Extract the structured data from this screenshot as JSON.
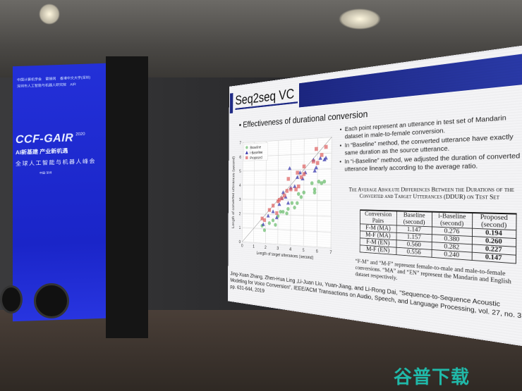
{
  "banner": {
    "logos": [
      "中国计算机学会",
      "雷锋网",
      "香港中文大学(深圳)",
      "深圳市人工智能与机器人研究院",
      "AIR"
    ],
    "title": "CCF-GAIR",
    "year": "2020",
    "slogan": "AI新基建 产业新机遇",
    "event": "全球人工智能与机器人峰会",
    "location": "中国·深圳"
  },
  "slide": {
    "title": "Seq2seq VC",
    "bullet": "Effectiveness of durational conversion",
    "notes": [
      "Each point represent an utterance in test set of Mandarin dataset in male-to-female conversion.",
      "In “Baseline” method, the converted utterance have exactly same duration as the source utterance.",
      "In “i-Baseline” method, we adjusted the duration of converted utterance linearly according to the average ratio."
    ],
    "table_caption": "The Average Absolute Differences Between the Durations of the Converted and Target Utterances (DDUR) on Test Set",
    "table": {
      "headers": [
        "Conversion Pairs",
        "Baseline (second)",
        "i-Baseline (second)",
        "Proposed (second)"
      ],
      "rows": [
        [
          "F-M (MA)",
          "1.147",
          "0.276",
          "0.194"
        ],
        [
          "M-F (MA)",
          "1.157",
          "0.380",
          "0.260"
        ],
        [
          "F-M (EN)",
          "0.560",
          "0.282",
          "0.227"
        ],
        [
          "M-F (EN)",
          "0.556",
          "0.240",
          "0.147"
        ]
      ]
    },
    "table_note": "“F-M” and “M-F” represent female-to-male and male-to-female conversions. “MA” and “EN” represent the Mandarin and English dataset respectively.",
    "reference": "Jing-Xuan Zhang, Zhen-Hua Ling ,Li-Juan Liu, Yuan-Jiang, and Li-Rong Dai, \"Sequence-to-Sequence Acoustic Modeling for Voice Conversion\", IEEE/ACM Transactions on Audio, Speech, and Language Processing, vol. 27, no. 3, pp. 631-644, 2019"
  },
  "watermark": "谷普下载",
  "chart_data": {
    "type": "scatter",
    "xlabel": "Length of target utterances (second)",
    "ylabel": "Length of converted utterances (second)",
    "xlim": [
      0,
      7
    ],
    "ylim": [
      0,
      7
    ],
    "xticks": [
      "0",
      "1",
      "2",
      "3",
      "4",
      "5",
      "6",
      "7"
    ],
    "yticks": [
      "0",
      "1",
      "2",
      "3",
      "4",
      "5",
      "6",
      "7"
    ],
    "grid": true,
    "legend": "top-left",
    "diagonal": true,
    "series": [
      {
        "name": "Baseline",
        "color": "#4cb050",
        "marker": "circle",
        "x": [
          1.7,
          1.9,
          2.3,
          2.6,
          2.8,
          3.0,
          3.2,
          3.4,
          3.7,
          3.8,
          4.1,
          4.3,
          4.5,
          4.6,
          4.8,
          5.0,
          5.6,
          5.8,
          5.8,
          6.1,
          6.3,
          6.5
        ],
        "y": [
          1.2,
          0.9,
          1.4,
          1.6,
          1.3,
          1.9,
          2.2,
          2.2,
          2.1,
          2.4,
          2.8,
          2.5,
          2.8,
          3.4,
          3.2,
          3.5,
          4.1,
          3.7,
          3.5,
          4.2,
          4.1,
          4.2
        ]
      },
      {
        "name": "i-Baseline",
        "color": "#3a3ab0",
        "marker": "triangle",
        "x": [
          1.8,
          2.2,
          2.6,
          2.9,
          3.1,
          3.3,
          3.4,
          3.6,
          3.8,
          3.9,
          4.0,
          4.3,
          4.5,
          4.7,
          4.9,
          5.1,
          5.7,
          5.8,
          5.9,
          6.2,
          6.5,
          6.6
        ],
        "y": [
          1.3,
          1.9,
          2.2,
          1.8,
          2.7,
          3.1,
          3.5,
          3.2,
          2.8,
          5.1,
          3.8,
          3.9,
          4.5,
          4.8,
          4.4,
          4.8,
          5.6,
          4.9,
          5.1,
          5.7,
          5.6,
          5.7
        ]
      },
      {
        "name": "Proposed",
        "color": "#e06060",
        "marker": "square",
        "x": [
          1.7,
          1.9,
          2.3,
          2.6,
          2.9,
          3.0,
          3.1,
          3.3,
          3.5,
          3.7,
          3.8,
          4.0,
          4.4,
          4.5,
          4.6,
          4.8,
          5.0,
          5.0,
          5.7,
          5.9,
          6.0,
          6.3,
          6.6
        ],
        "y": [
          1.7,
          1.6,
          2.3,
          2.6,
          2.1,
          2.9,
          3.0,
          3.1,
          3.3,
          3.6,
          4.4,
          3.7,
          3.7,
          4.8,
          3.9,
          4.5,
          5.2,
          4.7,
          5.5,
          6.3,
          5.4,
          5.9,
          6.4
        ]
      }
    ]
  }
}
